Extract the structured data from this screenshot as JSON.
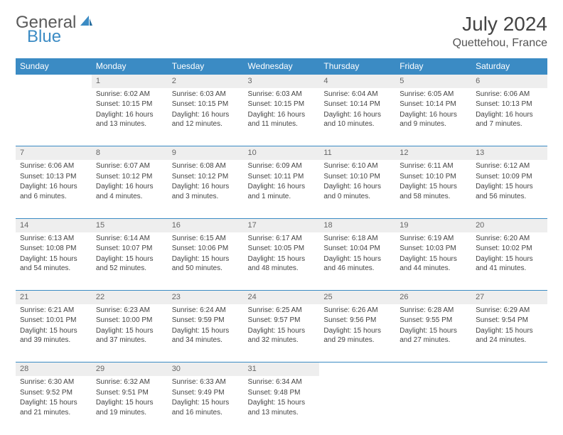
{
  "logo": {
    "part1": "General",
    "part2": "Blue"
  },
  "title": "July 2024",
  "location": "Quettehou, France",
  "colors": {
    "header_bg": "#3b8bc4",
    "header_text": "#ffffff",
    "daynum_bg": "#eeeeee",
    "border": "#3b8bc4"
  },
  "weekdays": [
    "Sunday",
    "Monday",
    "Tuesday",
    "Wednesday",
    "Thursday",
    "Friday",
    "Saturday"
  ],
  "weeks": [
    [
      null,
      {
        "n": "1",
        "sr": "6:02 AM",
        "ss": "10:15 PM",
        "dl": "16 hours and 13 minutes."
      },
      {
        "n": "2",
        "sr": "6:03 AM",
        "ss": "10:15 PM",
        "dl": "16 hours and 12 minutes."
      },
      {
        "n": "3",
        "sr": "6:03 AM",
        "ss": "10:15 PM",
        "dl": "16 hours and 11 minutes."
      },
      {
        "n": "4",
        "sr": "6:04 AM",
        "ss": "10:14 PM",
        "dl": "16 hours and 10 minutes."
      },
      {
        "n": "5",
        "sr": "6:05 AM",
        "ss": "10:14 PM",
        "dl": "16 hours and 9 minutes."
      },
      {
        "n": "6",
        "sr": "6:06 AM",
        "ss": "10:13 PM",
        "dl": "16 hours and 7 minutes."
      }
    ],
    [
      {
        "n": "7",
        "sr": "6:06 AM",
        "ss": "10:13 PM",
        "dl": "16 hours and 6 minutes."
      },
      {
        "n": "8",
        "sr": "6:07 AM",
        "ss": "10:12 PM",
        "dl": "16 hours and 4 minutes."
      },
      {
        "n": "9",
        "sr": "6:08 AM",
        "ss": "10:12 PM",
        "dl": "16 hours and 3 minutes."
      },
      {
        "n": "10",
        "sr": "6:09 AM",
        "ss": "10:11 PM",
        "dl": "16 hours and 1 minute."
      },
      {
        "n": "11",
        "sr": "6:10 AM",
        "ss": "10:10 PM",
        "dl": "16 hours and 0 minutes."
      },
      {
        "n": "12",
        "sr": "6:11 AM",
        "ss": "10:10 PM",
        "dl": "15 hours and 58 minutes."
      },
      {
        "n": "13",
        "sr": "6:12 AM",
        "ss": "10:09 PM",
        "dl": "15 hours and 56 minutes."
      }
    ],
    [
      {
        "n": "14",
        "sr": "6:13 AM",
        "ss": "10:08 PM",
        "dl": "15 hours and 54 minutes."
      },
      {
        "n": "15",
        "sr": "6:14 AM",
        "ss": "10:07 PM",
        "dl": "15 hours and 52 minutes."
      },
      {
        "n": "16",
        "sr": "6:15 AM",
        "ss": "10:06 PM",
        "dl": "15 hours and 50 minutes."
      },
      {
        "n": "17",
        "sr": "6:17 AM",
        "ss": "10:05 PM",
        "dl": "15 hours and 48 minutes."
      },
      {
        "n": "18",
        "sr": "6:18 AM",
        "ss": "10:04 PM",
        "dl": "15 hours and 46 minutes."
      },
      {
        "n": "19",
        "sr": "6:19 AM",
        "ss": "10:03 PM",
        "dl": "15 hours and 44 minutes."
      },
      {
        "n": "20",
        "sr": "6:20 AM",
        "ss": "10:02 PM",
        "dl": "15 hours and 41 minutes."
      }
    ],
    [
      {
        "n": "21",
        "sr": "6:21 AM",
        "ss": "10:01 PM",
        "dl": "15 hours and 39 minutes."
      },
      {
        "n": "22",
        "sr": "6:23 AM",
        "ss": "10:00 PM",
        "dl": "15 hours and 37 minutes."
      },
      {
        "n": "23",
        "sr": "6:24 AM",
        "ss": "9:59 PM",
        "dl": "15 hours and 34 minutes."
      },
      {
        "n": "24",
        "sr": "6:25 AM",
        "ss": "9:57 PM",
        "dl": "15 hours and 32 minutes."
      },
      {
        "n": "25",
        "sr": "6:26 AM",
        "ss": "9:56 PM",
        "dl": "15 hours and 29 minutes."
      },
      {
        "n": "26",
        "sr": "6:28 AM",
        "ss": "9:55 PM",
        "dl": "15 hours and 27 minutes."
      },
      {
        "n": "27",
        "sr": "6:29 AM",
        "ss": "9:54 PM",
        "dl": "15 hours and 24 minutes."
      }
    ],
    [
      {
        "n": "28",
        "sr": "6:30 AM",
        "ss": "9:52 PM",
        "dl": "15 hours and 21 minutes."
      },
      {
        "n": "29",
        "sr": "6:32 AM",
        "ss": "9:51 PM",
        "dl": "15 hours and 19 minutes."
      },
      {
        "n": "30",
        "sr": "6:33 AM",
        "ss": "9:49 PM",
        "dl": "15 hours and 16 minutes."
      },
      {
        "n": "31",
        "sr": "6:34 AM",
        "ss": "9:48 PM",
        "dl": "15 hours and 13 minutes."
      },
      null,
      null,
      null
    ]
  ],
  "labels": {
    "sunrise": "Sunrise:",
    "sunset": "Sunset:",
    "daylight": "Daylight:"
  }
}
